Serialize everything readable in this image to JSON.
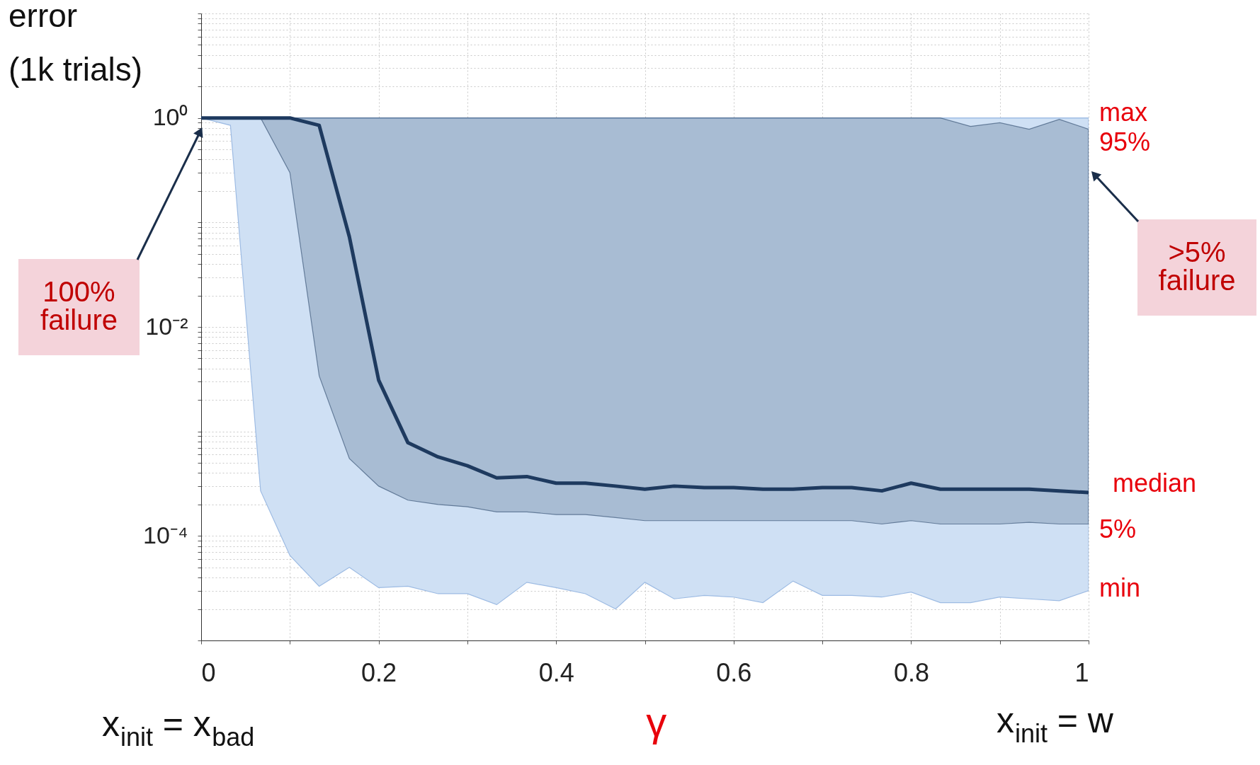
{
  "chart_data": {
    "type": "line",
    "ylabel": "error\n(1k trials)",
    "xlabel": "γ",
    "x": [
      0,
      0.033,
      0.067,
      0.1,
      0.133,
      0.167,
      0.2,
      0.233,
      0.267,
      0.3,
      0.333,
      0.367,
      0.4,
      0.433,
      0.467,
      0.5,
      0.533,
      0.567,
      0.6,
      0.633,
      0.667,
      0.7,
      0.733,
      0.767,
      0.8,
      0.833,
      0.867,
      0.9,
      0.933,
      0.967,
      1
    ],
    "series": [
      {
        "color": "#9dbbe3",
        "values": [
          1,
          1,
          1,
          1,
          1,
          1,
          1,
          1,
          1,
          1,
          1,
          1,
          1,
          1,
          1,
          1,
          1,
          1,
          1,
          1,
          1,
          1,
          1,
          1,
          1,
          1,
          1,
          1,
          1,
          1,
          1
        ],
        "upper": [
          1,
          1,
          1,
          1,
          1,
          1,
          1,
          1,
          1,
          1,
          1,
          1,
          1,
          1,
          1,
          1,
          1,
          1,
          1,
          1,
          1,
          1,
          1,
          1,
          1,
          1,
          1,
          1,
          1,
          1,
          1
        ],
        "lower": [
          1,
          0.85,
          0.00027,
          6.5e-05,
          3.3e-05,
          5e-05,
          3.2e-05,
          3.3e-05,
          2.8e-05,
          2.8e-05,
          2.2e-05,
          3.6e-05,
          3.2e-05,
          2.8e-05,
          2e-05,
          3.6e-05,
          2.5e-05,
          2.7e-05,
          2.6e-05,
          2.3e-05,
          3.7e-05,
          2.7e-05,
          2.7e-05,
          2.6e-05,
          2.9e-05,
          2.3e-05,
          2.3e-05,
          2.6e-05,
          2.5e-05,
          2.4e-05,
          3e-05
        ]
      },
      {
        "type": "line",
        "name": "median",
        "color": "#1e3a5f",
        "values": [
          1,
          1,
          1,
          1,
          0.85,
          0.073,
          0.0031,
          0.00078,
          0.00057,
          0.00047,
          0.00036,
          0.00037,
          0.00032,
          0.00032,
          0.0003,
          0.00028,
          0.0003,
          0.00029,
          0.00029,
          0.00028,
          0.00028,
          0.00029,
          0.00029,
          0.00027,
          0.00032,
          0.00028,
          0.00028,
          0.00028,
          0.00028,
          0.00027,
          0.00026
        ],
        "lower": [
          1,
          1,
          1,
          0.3,
          0.0034,
          0.00055,
          0.0003,
          0.00022,
          0.0002,
          0.00019,
          0.00017,
          0.00017,
          0.00016,
          0.00016,
          0.00015,
          0.00014,
          0.00014,
          0.00014,
          0.00014,
          0.00014,
          0.00014,
          0.00014,
          0.00014,
          0.00013,
          0.00014,
          0.00013,
          0.00013,
          0.00013,
          0.000135,
          0.00013,
          0.00013
        ],
        "upper": [
          1,
          1,
          1,
          1,
          1,
          1,
          1,
          1,
          1,
          1,
          1,
          1,
          1,
          1,
          1,
          1,
          1,
          1,
          1,
          1,
          1,
          1,
          1,
          1,
          1,
          1,
          0.83,
          0.9,
          0.78,
          0.97,
          0.78
        ]
      }
    ],
    "annotations": [
      "max",
      "95%",
      "5%",
      "min",
      "100%\nfailure",
      ">5%\nfailure",
      "x$_{init}$ = x$_{bad}$",
      "x$_{init}$ = w"
    ],
    "log": "y",
    "xlim": [
      0,
      1
    ],
    "xticks": [
      0,
      {
        "value": 0.1,
        "label": null
      },
      0.2,
      {
        "value": 0.3,
        "label": null
      },
      0.4,
      {
        "value": 0.5,
        "label": null
      },
      0.6,
      {
        "value": 0.7,
        "label": null
      },
      0.8,
      {
        "value": 0.9,
        "label": null
      },
      1
    ],
    "ylim": [
      1e-05,
      10
    ],
    "yticks": [
      {
        "value": 1e-05,
        "label": null
      },
      {
        "value": 2e-05,
        "label": null
      },
      {
        "value": 3e-05,
        "label": null
      },
      {
        "value": 4e-05,
        "label": null
      },
      {
        "value": 5e-05,
        "label": null
      },
      {
        "value": 6e-05,
        "label": null
      },
      {
        "value": 7e-05,
        "label": null
      },
      {
        "value": 8e-05,
        "label": null
      },
      {
        "value": 9e-05,
        "label": null
      },
      {
        "value": 0.0001,
        "label": "10⁻⁴"
      },
      {
        "value": 0.0002,
        "label": null
      },
      {
        "value": 0.0003,
        "label": null
      },
      {
        "value": 0.0004,
        "label": null
      },
      {
        "value": 0.0005,
        "label": null
      },
      {
        "value": 0.0006,
        "label": null
      },
      {
        "value": 0.0007,
        "label": null
      },
      {
        "value": 0.0008,
        "label": null
      },
      {
        "value": 0.0009,
        "label": null
      },
      {
        "value": 0.001,
        "label": null
      },
      {
        "value": 0.002,
        "label": null
      },
      {
        "value": 0.003,
        "label": null
      },
      {
        "value": 0.004,
        "label": null
      },
      {
        "value": 0.005,
        "label": null
      },
      {
        "value": 0.006,
        "label": null
      },
      {
        "value": 0.007,
        "label": null
      },
      {
        "value": 0.008,
        "label": null
      },
      {
        "value": 0.009,
        "label": null
      },
      {
        "value": 0.01,
        "label": "10⁻²"
      },
      {
        "value": 0.02,
        "label": null
      },
      {
        "value": 0.03,
        "label": null
      },
      {
        "value": 0.04,
        "label": null
      },
      {
        "value": 0.05,
        "label": null
      },
      {
        "value": 0.06,
        "label": null
      },
      {
        "value": 0.07,
        "label": null
      },
      {
        "value": 0.08,
        "label": null
      },
      {
        "value": 0.09,
        "label": null
      },
      {
        "value": 0.1,
        "label": null
      },
      {
        "value": 0.2,
        "label": null
      },
      {
        "value": 0.3,
        "label": null
      },
      {
        "value": 0.4,
        "label": null
      },
      {
        "value": 0.5,
        "label": null
      },
      {
        "value": 0.6,
        "label": null
      },
      {
        "value": 0.7,
        "label": null
      },
      {
        "value": 0.8,
        "label": null
      },
      {
        "value": 0.9,
        "label": null
      },
      {
        "value": 1,
        "label": "10⁰"
      },
      {
        "value": 2,
        "label": null
      },
      {
        "value": 3,
        "label": null
      },
      {
        "value": 4,
        "label": null
      },
      {
        "value": 5,
        "label": null
      },
      {
        "value": 6,
        "label": null
      },
      {
        "value": 7,
        "label": null
      },
      {
        "value": 8,
        "label": null
      },
      {
        "value": 9,
        "label": null
      },
      {
        "value": 10,
        "label": null
      }
    ],
    "grid": true
  }
}
